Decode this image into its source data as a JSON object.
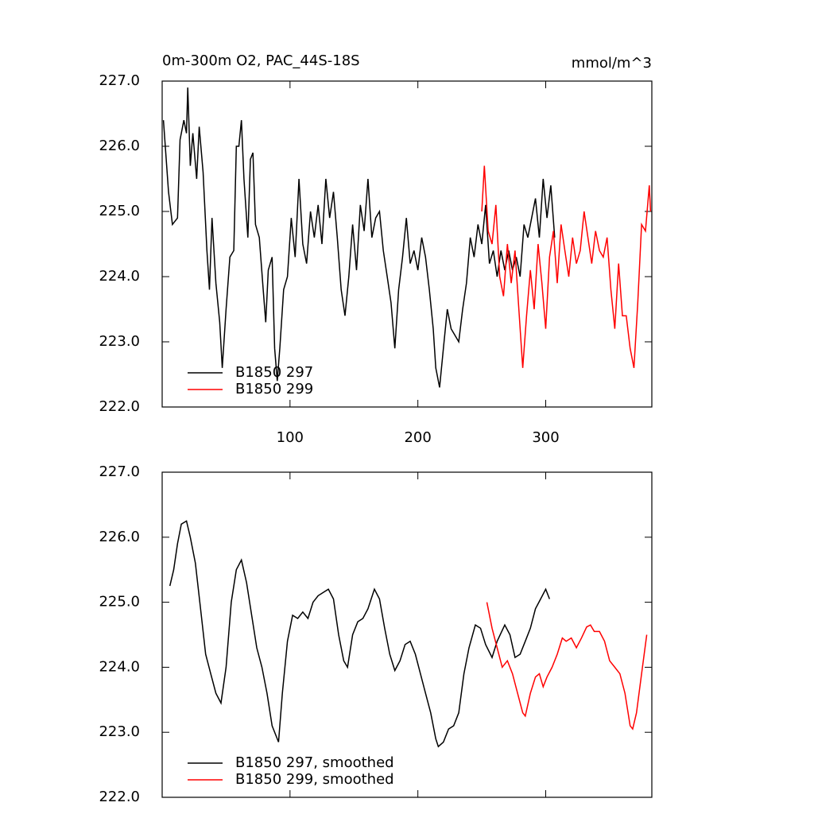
{
  "chart_data": [
    {
      "type": "line",
      "title": "0m-300m O2, PAC_44S-18S",
      "units": "mmol/m^3",
      "xlim": [
        0,
        383
      ],
      "ylim": [
        222,
        227
      ],
      "xticks": [
        100,
        200,
        300
      ],
      "show_xtick_labels": true,
      "yticks": [
        {
          "value": 222,
          "label": "222.0"
        },
        {
          "value": 223,
          "label": "223.0"
        },
        {
          "value": 224,
          "label": "224.0"
        },
        {
          "value": 225,
          "label": "225.0"
        },
        {
          "value": 226,
          "label": "226.0"
        },
        {
          "value": 227,
          "label": "227.0"
        }
      ],
      "legend": "lower left",
      "series": [
        {
          "name": "B1850 297",
          "color": "#000000",
          "x": [
            1,
            5,
            8,
            12,
            14,
            17,
            19,
            20,
            22,
            24,
            27,
            29,
            32,
            35,
            37,
            39,
            42,
            45,
            47,
            50,
            53,
            56,
            58,
            60,
            62,
            64,
            67,
            69,
            71,
            73,
            76,
            79,
            81,
            83,
            86,
            88,
            90,
            92,
            95,
            98,
            101,
            104,
            107,
            110,
            113,
            116,
            119,
            122,
            125,
            128,
            131,
            134,
            137,
            140,
            143,
            146,
            149,
            152,
            155,
            158,
            161,
            164,
            167,
            170,
            173,
            176,
            179,
            182,
            185,
            188,
            191,
            194,
            197,
            200,
            203,
            206,
            209,
            212,
            214,
            217,
            220,
            223,
            226,
            229,
            232,
            235,
            238,
            241,
            244,
            247,
            250,
            253,
            256,
            259,
            262,
            265,
            268,
            271,
            274,
            277,
            280,
            283,
            286,
            289,
            292,
            295,
            298,
            301,
            304,
            307
          ],
          "values": [
            226.4,
            225.3,
            224.8,
            224.9,
            226.1,
            226.4,
            226.2,
            226.9,
            225.7,
            226.2,
            225.5,
            226.3,
            225.6,
            224.4,
            223.8,
            224.9,
            223.9,
            223.3,
            222.6,
            223.5,
            224.3,
            224.4,
            226.0,
            226.0,
            226.4,
            225.5,
            224.6,
            225.8,
            225.9,
            224.8,
            224.6,
            223.8,
            223.3,
            224.1,
            224.3,
            222.9,
            222.4,
            222.9,
            223.8,
            224.0,
            224.9,
            224.3,
            225.5,
            224.5,
            224.2,
            225.0,
            224.6,
            225.1,
            224.5,
            225.5,
            224.9,
            225.3,
            224.6,
            223.8,
            223.4,
            224.0,
            224.8,
            224.1,
            225.1,
            224.7,
            225.5,
            224.6,
            224.9,
            225.0,
            224.4,
            224.0,
            223.6,
            222.9,
            223.8,
            224.3,
            224.9,
            224.2,
            224.4,
            224.1,
            224.6,
            224.3,
            223.8,
            223.2,
            222.6,
            222.3,
            222.9,
            223.5,
            223.2,
            223.1,
            223.0,
            223.5,
            223.9,
            224.6,
            224.3,
            224.8,
            224.5,
            225.1,
            224.2,
            224.4,
            224.0,
            224.4,
            224.1,
            224.4,
            224.1,
            224.3,
            224.0,
            224.8,
            224.6,
            224.9,
            225.2,
            224.6,
            225.5,
            224.9,
            225.4,
            224.6
          ]
        },
        {
          "name": "B1850 299",
          "color": "#ff0000",
          "x": [
            250,
            252,
            255,
            258,
            261,
            264,
            267,
            270,
            273,
            276,
            279,
            282,
            285,
            288,
            291,
            294,
            297,
            300,
            303,
            306,
            309,
            312,
            315,
            318,
            321,
            324,
            327,
            330,
            333,
            336,
            339,
            342,
            345,
            348,
            351,
            354,
            357,
            360,
            363,
            366,
            369,
            372,
            375,
            378,
            381,
            382
          ],
          "values": [
            225.0,
            225.7,
            224.7,
            224.5,
            225.1,
            224.0,
            223.7,
            224.5,
            223.9,
            224.4,
            223.5,
            222.6,
            223.4,
            224.1,
            223.5,
            224.5,
            223.9,
            223.2,
            224.3,
            224.7,
            223.9,
            224.8,
            224.4,
            224.0,
            224.6,
            224.2,
            224.4,
            225.0,
            224.6,
            224.2,
            224.7,
            224.4,
            224.3,
            224.6,
            223.8,
            223.2,
            224.2,
            223.4,
            223.4,
            222.9,
            222.6,
            223.6,
            224.8,
            224.7,
            225.4,
            225.0
          ]
        }
      ]
    },
    {
      "type": "line",
      "xlim": [
        0,
        383
      ],
      "ylim": [
        222,
        227
      ],
      "xticks": [
        100,
        200,
        300
      ],
      "show_xtick_labels": false,
      "yticks": [
        {
          "value": 222,
          "label": "222.0"
        },
        {
          "value": 223,
          "label": "223.0"
        },
        {
          "value": 224,
          "label": "224.0"
        },
        {
          "value": 225,
          "label": "225.0"
        },
        {
          "value": 226,
          "label": "226.0"
        },
        {
          "value": 227,
          "label": "227.0"
        }
      ],
      "legend": "lower left",
      "series": [
        {
          "name": "B1850 297, smoothed",
          "color": "#000000",
          "x": [
            6,
            9,
            12,
            15,
            19,
            22,
            26,
            30,
            34,
            38,
            42,
            46,
            50,
            54,
            58,
            62,
            66,
            70,
            74,
            78,
            82,
            86,
            91,
            94,
            98,
            102,
            106,
            110,
            114,
            118,
            122,
            126,
            130,
            134,
            138,
            142,
            145,
            149,
            153,
            157,
            161,
            166,
            170,
            174,
            178,
            182,
            186,
            190,
            194,
            198,
            202,
            206,
            210,
            214,
            216,
            220,
            224,
            228,
            232,
            236,
            240,
            245,
            249,
            253,
            258,
            262,
            268,
            272,
            276,
            280,
            284,
            288,
            292,
            296,
            300,
            303
          ],
          "values": [
            225.25,
            225.5,
            225.9,
            226.2,
            226.25,
            226.0,
            225.6,
            224.9,
            224.2,
            223.9,
            223.6,
            223.45,
            224.0,
            225.0,
            225.5,
            225.65,
            225.3,
            224.8,
            224.3,
            224.0,
            223.6,
            223.1,
            222.85,
            223.6,
            224.4,
            224.8,
            224.75,
            224.85,
            224.75,
            225.0,
            225.1,
            225.15,
            225.2,
            225.05,
            224.5,
            224.1,
            224.0,
            224.5,
            224.7,
            224.75,
            224.9,
            225.2,
            225.05,
            224.6,
            224.2,
            223.95,
            224.1,
            224.35,
            224.4,
            224.2,
            223.9,
            223.6,
            223.3,
            222.9,
            222.78,
            222.85,
            223.05,
            223.1,
            223.3,
            223.9,
            224.3,
            224.65,
            224.6,
            224.35,
            224.15,
            224.4,
            224.65,
            224.5,
            224.15,
            224.2,
            224.4,
            224.6,
            224.9,
            225.05,
            225.2,
            225.05
          ]
        },
        {
          "name": "B1850 299, smoothed",
          "color": "#ff0000",
          "x": [
            254,
            258,
            262,
            266,
            270,
            274,
            278,
            282,
            284,
            288,
            292,
            295,
            298,
            301,
            305,
            309,
            313,
            316,
            320,
            324,
            328,
            332,
            335,
            338,
            342,
            346,
            350,
            354,
            358,
            362,
            366,
            368,
            371,
            375,
            379
          ],
          "values": [
            225.0,
            224.6,
            224.3,
            224.0,
            224.1,
            223.9,
            223.6,
            223.3,
            223.25,
            223.6,
            223.85,
            223.9,
            223.7,
            223.85,
            224.0,
            224.2,
            224.45,
            224.4,
            224.45,
            224.3,
            224.45,
            224.62,
            224.65,
            224.55,
            224.55,
            224.4,
            224.1,
            224.0,
            223.9,
            223.6,
            223.1,
            223.05,
            223.3,
            223.9,
            224.5
          ]
        }
      ]
    }
  ]
}
